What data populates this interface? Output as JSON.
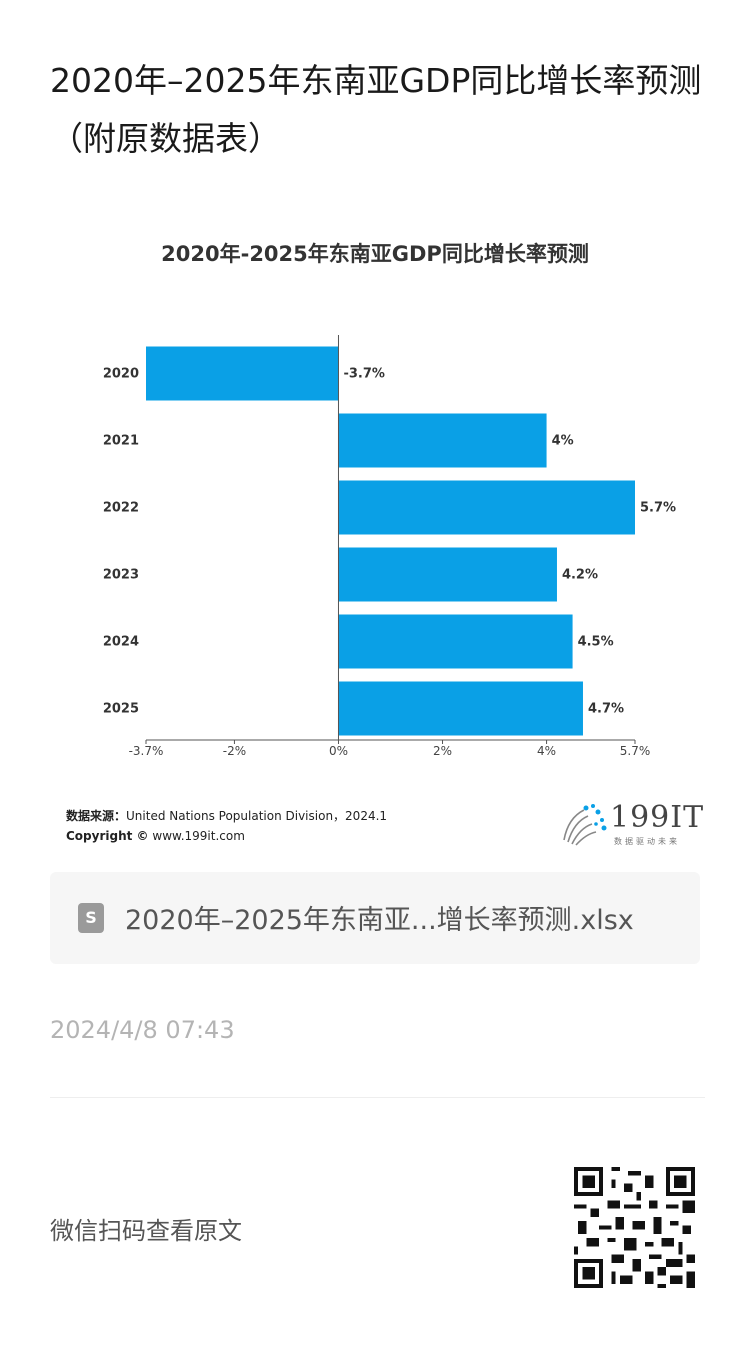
{
  "page": {
    "title": "2020年–2025年东南亚GDP同比增长率预测（附原数据表）",
    "file_name": "2020年–2025年东南亚...增长率预测.xlsx",
    "file_icon_letter": "S",
    "timestamp": "2024/4/8 07:43",
    "qr_label": "微信扫码查看原文"
  },
  "source": {
    "label": "数据来源：",
    "text": "United Nations Population Division，2024.1",
    "copyright_label": "Copyright ©",
    "copyright_text": "www.199it.com"
  },
  "logo": {
    "name": "199IT",
    "tagline": "数据驱动未来"
  },
  "colors": {
    "bar": "#0aa0e6",
    "axis": "#555555",
    "label": "#333333"
  },
  "chart_data": {
    "type": "bar",
    "orientation": "horizontal",
    "title": "2020年-2025年东南亚GDP同比增长率预测",
    "categories": [
      "2020",
      "2021",
      "2022",
      "2023",
      "2024",
      "2025"
    ],
    "values": [
      -3.7,
      4,
      5.7,
      4.2,
      4.5,
      4.7
    ],
    "data_labels": [
      "-3.7%",
      "4%",
      "5.7%",
      "4.2%",
      "4.5%",
      "4.7%"
    ],
    "xlim": [
      -3.7,
      5.7
    ],
    "x_ticks": [
      -3.7,
      -2,
      0,
      2,
      4,
      5.7
    ],
    "x_tick_labels": [
      "-3.7%",
      "-2%",
      "0%",
      "2%",
      "4%",
      "5.7%"
    ],
    "grid": false,
    "legend": "none"
  }
}
